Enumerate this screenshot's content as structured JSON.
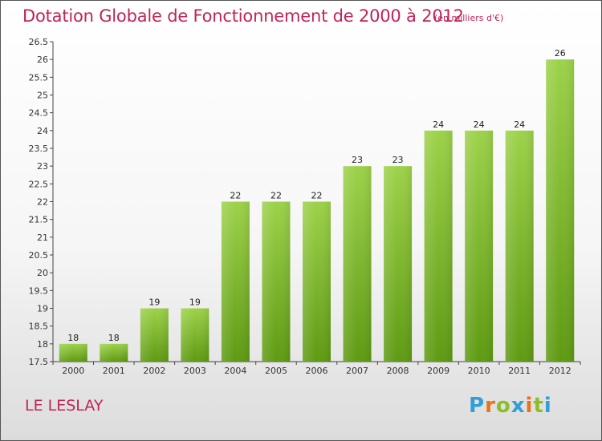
{
  "header": {
    "title": "Dotation Globale de Fonctionnement de 2000 à 2012",
    "unit": "(en milliers d'€)"
  },
  "footer": {
    "town": "LE LESLAY",
    "brand_letters": [
      {
        "ch": "P",
        "color": "#2f9fd8"
      },
      {
        "ch": "r",
        "color": "#e8731c"
      },
      {
        "ch": "o",
        "color": "#8bbf2a"
      },
      {
        "ch": "x",
        "color": "#2f9fd8"
      },
      {
        "ch": "i",
        "color": "#e8731c"
      },
      {
        "ch": "t",
        "color": "#8bbf2a"
      },
      {
        "ch": "i",
        "color": "#2f9fd8"
      }
    ]
  },
  "chart_data": {
    "type": "bar",
    "title": "Dotation Globale de Fonctionnement de 2000 à 2012",
    "subtitle": "(en milliers d'€)",
    "categories": [
      "2000",
      "2001",
      "2002",
      "2003",
      "2004",
      "2005",
      "2006",
      "2007",
      "2008",
      "2009",
      "2010",
      "2011",
      "2012"
    ],
    "values": [
      18,
      18,
      19,
      19,
      22,
      22,
      22,
      23,
      23,
      24,
      24,
      24,
      26
    ],
    "ylim": [
      17.5,
      26.5
    ],
    "yticks": [
      "17.5",
      "18",
      "18.5",
      "19",
      "19.5",
      "20",
      "20.5",
      "21",
      "21.5",
      "22",
      "22.5",
      "23",
      "23.5",
      "24",
      "24.5",
      "25",
      "25.5",
      "26",
      "26.5"
    ],
    "grid": false,
    "legend": "none",
    "bar_color": "#7fbf2a"
  }
}
